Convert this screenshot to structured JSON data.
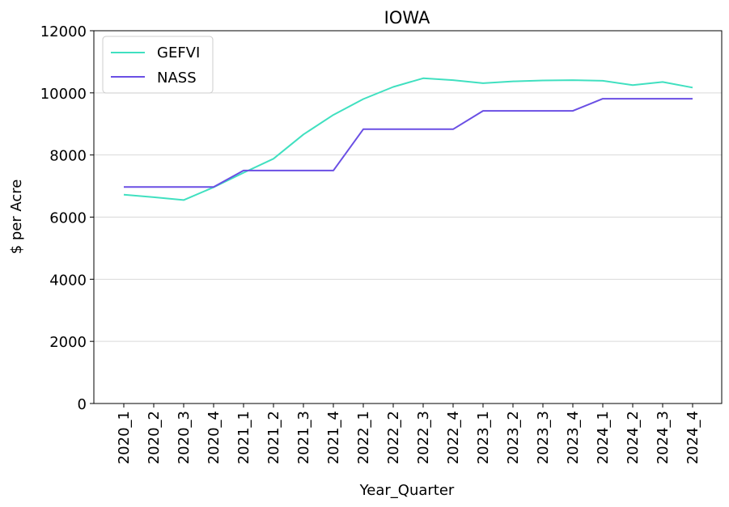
{
  "chart_data": {
    "type": "line",
    "title": "IOWA",
    "xlabel": "Year_Quarter",
    "ylabel": "$ per Acre",
    "ylim": [
      0,
      12000
    ],
    "yticks": [
      0,
      2000,
      4000,
      6000,
      8000,
      10000,
      12000
    ],
    "grid": "horizontal",
    "legend_position": "top-left",
    "categories": [
      "2020_1",
      "2020_2",
      "2020_3",
      "2020_4",
      "2021_1",
      "2021_2",
      "2021_3",
      "2021_4",
      "2022_1",
      "2022_2",
      "2022_3",
      "2022_4",
      "2023_1",
      "2023_2",
      "2023_3",
      "2023_4",
      "2024_1",
      "2024_2",
      "2024_3",
      "2024_4"
    ],
    "series": [
      {
        "name": "GEFVI",
        "color": "#40e0c0",
        "values": [
          6720,
          6640,
          6550,
          6960,
          7430,
          7880,
          8660,
          9290,
          9800,
          10190,
          10470,
          10410,
          10310,
          10370,
          10400,
          10410,
          10390,
          10250,
          10350,
          10170
        ]
      },
      {
        "name": "NASS",
        "color": "#6a4fe4",
        "values": [
          6970,
          6970,
          6970,
          6970,
          7500,
          7500,
          7500,
          7500,
          8830,
          8830,
          8830,
          8830,
          9420,
          9420,
          9420,
          9420,
          9810,
          9810,
          9810,
          9810
        ]
      }
    ]
  }
}
